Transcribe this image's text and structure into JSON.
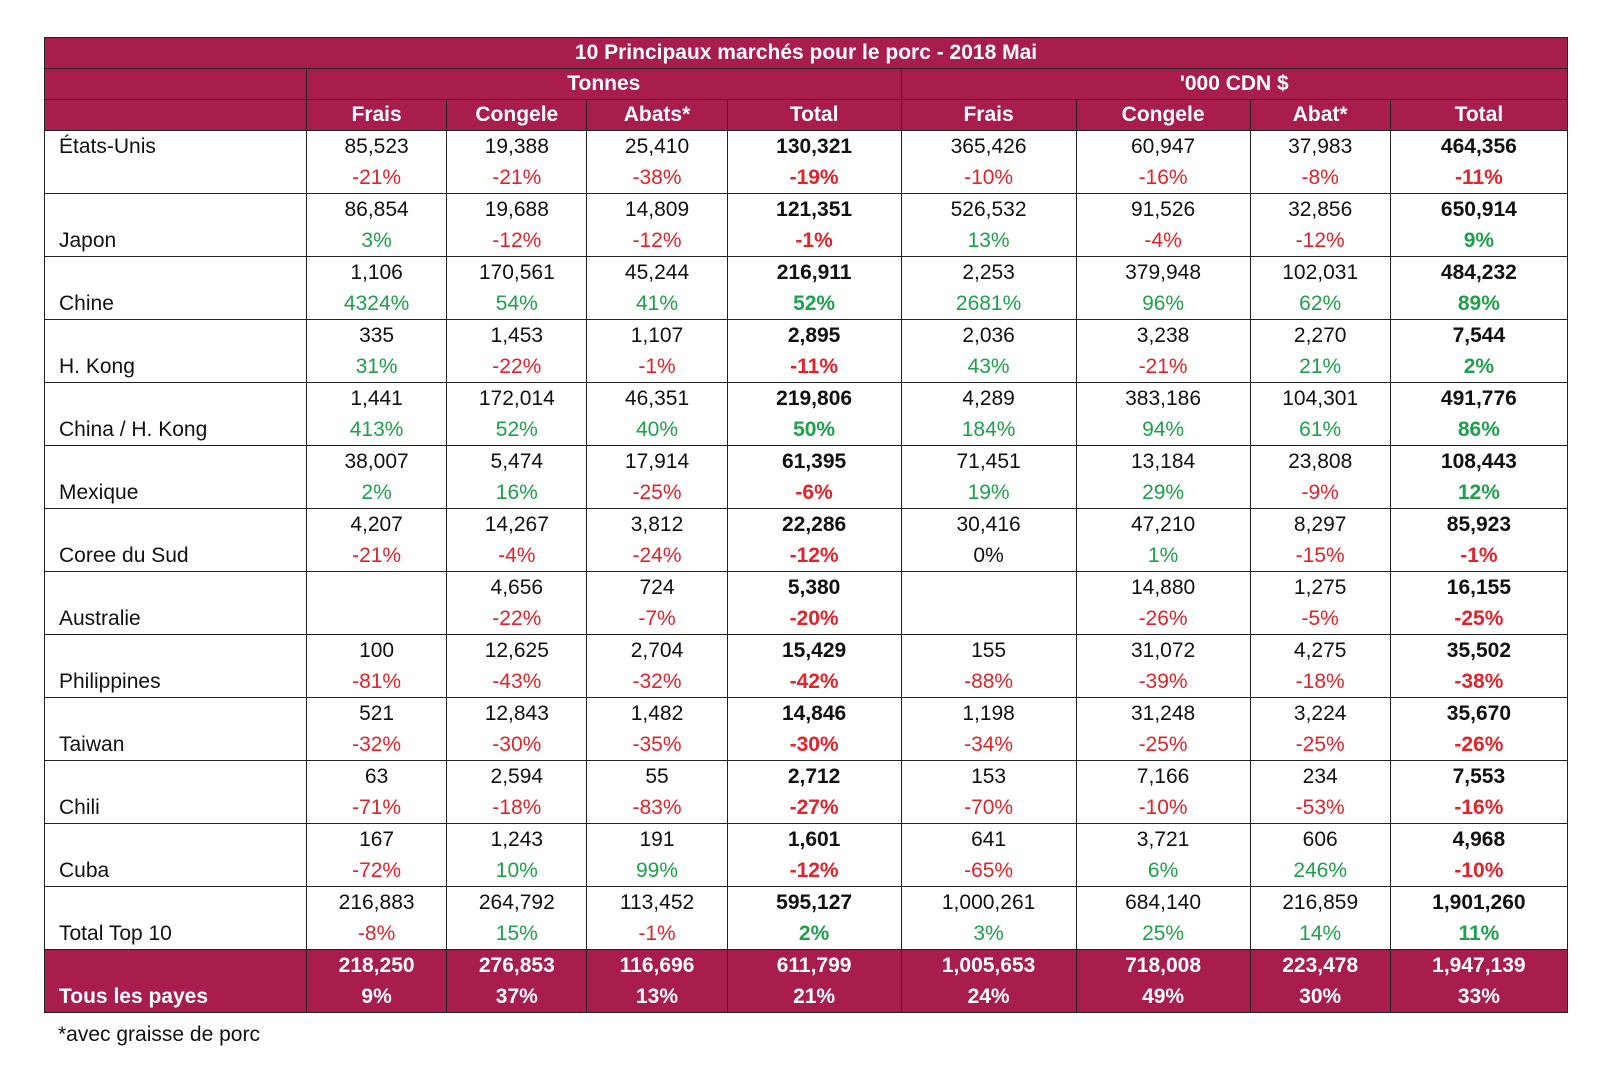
{
  "title": "10 Principaux marchés pour le porc - 2018 Mai",
  "group_headers": [
    "Tonnes",
    "'000 CDN $"
  ],
  "columns": [
    "Frais",
    "Congele",
    "Abats*",
    "Total",
    "Frais",
    "Congele",
    "Abat*",
    "Total"
  ],
  "rows": [
    {
      "name": "États-Unis",
      "vals": [
        "85,523",
        "19,388",
        "25,410",
        "130,321",
        "365,426",
        "60,947",
        "37,983",
        "464,356"
      ],
      "pcts": [
        "-21%",
        "-21%",
        "-38%",
        "-19%",
        "-10%",
        "-16%",
        "-8%",
        "-11%"
      ]
    },
    {
      "name": "Japon",
      "vals": [
        "86,854",
        "19,688",
        "14,809",
        "121,351",
        "526,532",
        "91,526",
        "32,856",
        "650,914"
      ],
      "pcts": [
        "3%",
        "-12%",
        "-12%",
        "-1%",
        "13%",
        "-4%",
        "-12%",
        "9%"
      ]
    },
    {
      "name": "Chine",
      "vals": [
        "1,106",
        "170,561",
        "45,244",
        "216,911",
        "2,253",
        "379,948",
        "102,031",
        "484,232"
      ],
      "pcts": [
        "4324%",
        "54%",
        "41%",
        "52%",
        "2681%",
        "96%",
        "62%",
        "89%"
      ]
    },
    {
      "name": "H. Kong",
      "vals": [
        "335",
        "1,453",
        "1,107",
        "2,895",
        "2,036",
        "3,238",
        "2,270",
        "7,544"
      ],
      "pcts": [
        "31%",
        "-22%",
        "-1%",
        "-11%",
        "43%",
        "-21%",
        "21%",
        "2%"
      ]
    },
    {
      "name": "China / H. Kong",
      "vals": [
        "1,441",
        "172,014",
        "46,351",
        "219,806",
        "4,289",
        "383,186",
        "104,301",
        "491,776"
      ],
      "pcts": [
        "413%",
        "52%",
        "40%",
        "50%",
        "184%",
        "94%",
        "61%",
        "86%"
      ]
    },
    {
      "name": "Mexique",
      "vals": [
        "38,007",
        "5,474",
        "17,914",
        "61,395",
        "71,451",
        "13,184",
        "23,808",
        "108,443"
      ],
      "pcts": [
        "2%",
        "16%",
        "-25%",
        "-6%",
        "19%",
        "29%",
        "-9%",
        "12%"
      ]
    },
    {
      "name": "Coree du Sud",
      "vals": [
        "4,207",
        "14,267",
        "3,812",
        "22,286",
        "30,416",
        "47,210",
        "8,297",
        "85,923"
      ],
      "pcts": [
        "-21%",
        "-4%",
        "-24%",
        "-12%",
        "0%",
        "1%",
        "-15%",
        "-1%"
      ]
    },
    {
      "name": "Australie",
      "vals": [
        "",
        "4,656",
        "724",
        "5,380",
        "",
        "14,880",
        "1,275",
        "16,155"
      ],
      "pcts": [
        "",
        "-22%",
        "-7%",
        "-20%",
        "",
        "-26%",
        "-5%",
        "-25%"
      ]
    },
    {
      "name": "Philippines",
      "vals": [
        "100",
        "12,625",
        "2,704",
        "15,429",
        "155",
        "31,072",
        "4,275",
        "35,502"
      ],
      "pcts": [
        "-81%",
        "-43%",
        "-32%",
        "-42%",
        "-88%",
        "-39%",
        "-18%",
        "-38%"
      ]
    },
    {
      "name": "Taiwan",
      "vals": [
        "521",
        "12,843",
        "1,482",
        "14,846",
        "1,198",
        "31,248",
        "3,224",
        "35,670"
      ],
      "pcts": [
        "-32%",
        "-30%",
        "-35%",
        "-30%",
        "-34%",
        "-25%",
        "-25%",
        "-26%"
      ]
    },
    {
      "name": "Chili",
      "vals": [
        "63",
        "2,594",
        "55",
        "2,712",
        "153",
        "7,166",
        "234",
        "7,553"
      ],
      "pcts": [
        "-71%",
        "-18%",
        "-83%",
        "-27%",
        "-70%",
        "-10%",
        "-53%",
        "-16%"
      ]
    },
    {
      "name": "Cuba",
      "vals": [
        "167",
        "1,243",
        "191",
        "1,601",
        "641",
        "3,721",
        "606",
        "4,968"
      ],
      "pcts": [
        "-72%",
        "10%",
        "99%",
        "-12%",
        "-65%",
        "6%",
        "246%",
        "-10%"
      ]
    },
    {
      "name": "Total Top 10",
      "vals": [
        "216,883",
        "264,792",
        "113,452",
        "595,127",
        "1,000,261",
        "684,140",
        "216,859",
        "1,901,260"
      ],
      "pcts": [
        "-8%",
        "15%",
        "-1%",
        "2%",
        "3%",
        "25%",
        "14%",
        "11%"
      ]
    }
  ],
  "all_row": {
    "name": "Tous les payes",
    "vals": [
      "218,250",
      "276,853",
      "116,696",
      "611,799",
      "1,005,653",
      "718,008",
      "223,478",
      "1,947,139"
    ],
    "pcts": [
      "9%",
      "37%",
      "13%",
      "21%",
      "24%",
      "49%",
      "30%",
      "33%"
    ]
  },
  "footnote": "*avec graisse de porc",
  "colors": {
    "header_bg": "#a81c4e",
    "negative": "#e0242b",
    "positive": "#1fa04a"
  }
}
